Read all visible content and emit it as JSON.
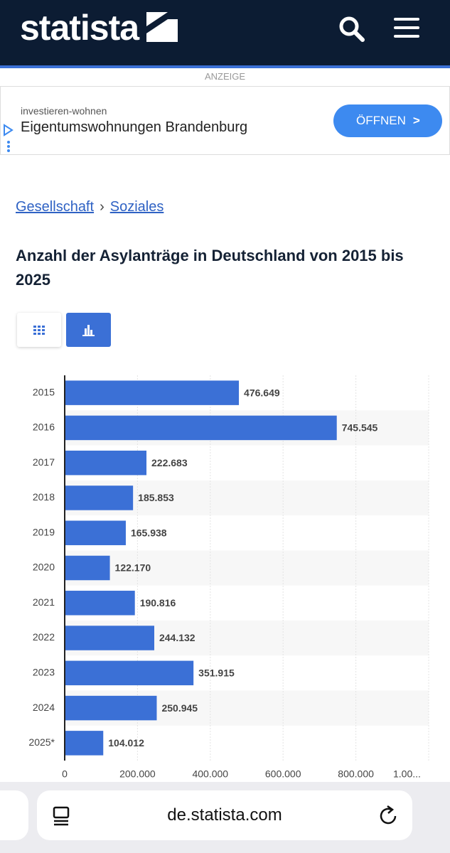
{
  "header": {
    "logo": "statista"
  },
  "ad": {
    "label": "ANZEIGE",
    "source": "investieren-wohnen",
    "headline": "Eigentumswohnungen Brandenburg",
    "button": "ÖFFNEN"
  },
  "breadcrumb": {
    "items": [
      "Gesellschaft",
      "Soziales"
    ],
    "separator": "›"
  },
  "chart_data": {
    "type": "bar",
    "orientation": "horizontal",
    "title": "Anzahl der Asylanträge in Deutschland von 2015 bis 2025",
    "categories": [
      "2015",
      "2016",
      "2017",
      "2018",
      "2019",
      "2020",
      "2021",
      "2022",
      "2023",
      "2024",
      "2025*"
    ],
    "values": [
      476649,
      745545,
      222683,
      185853,
      165938,
      122170,
      190816,
      244132,
      351915,
      250945,
      104012
    ],
    "value_labels": [
      "476.649",
      "745.545",
      "222.683",
      "185.853",
      "165.938",
      "122.170",
      "190.816",
      "244.132",
      "351.915",
      "250.945",
      "104.012"
    ],
    "color": "#3b70d6",
    "xlim": [
      0,
      1000000
    ],
    "xticks": [
      0,
      {
        "value": 200000,
        "label": "200.000"
      },
      {
        "value": 400000,
        "label": "400.000"
      },
      {
        "value": 600000,
        "label": "600.000"
      },
      {
        "value": 800000,
        "label": "800.000"
      },
      {
        "value": 1000000,
        "label": "1.00..."
      }
    ],
    "grid": true
  },
  "browser": {
    "url": "de.statista.com"
  }
}
